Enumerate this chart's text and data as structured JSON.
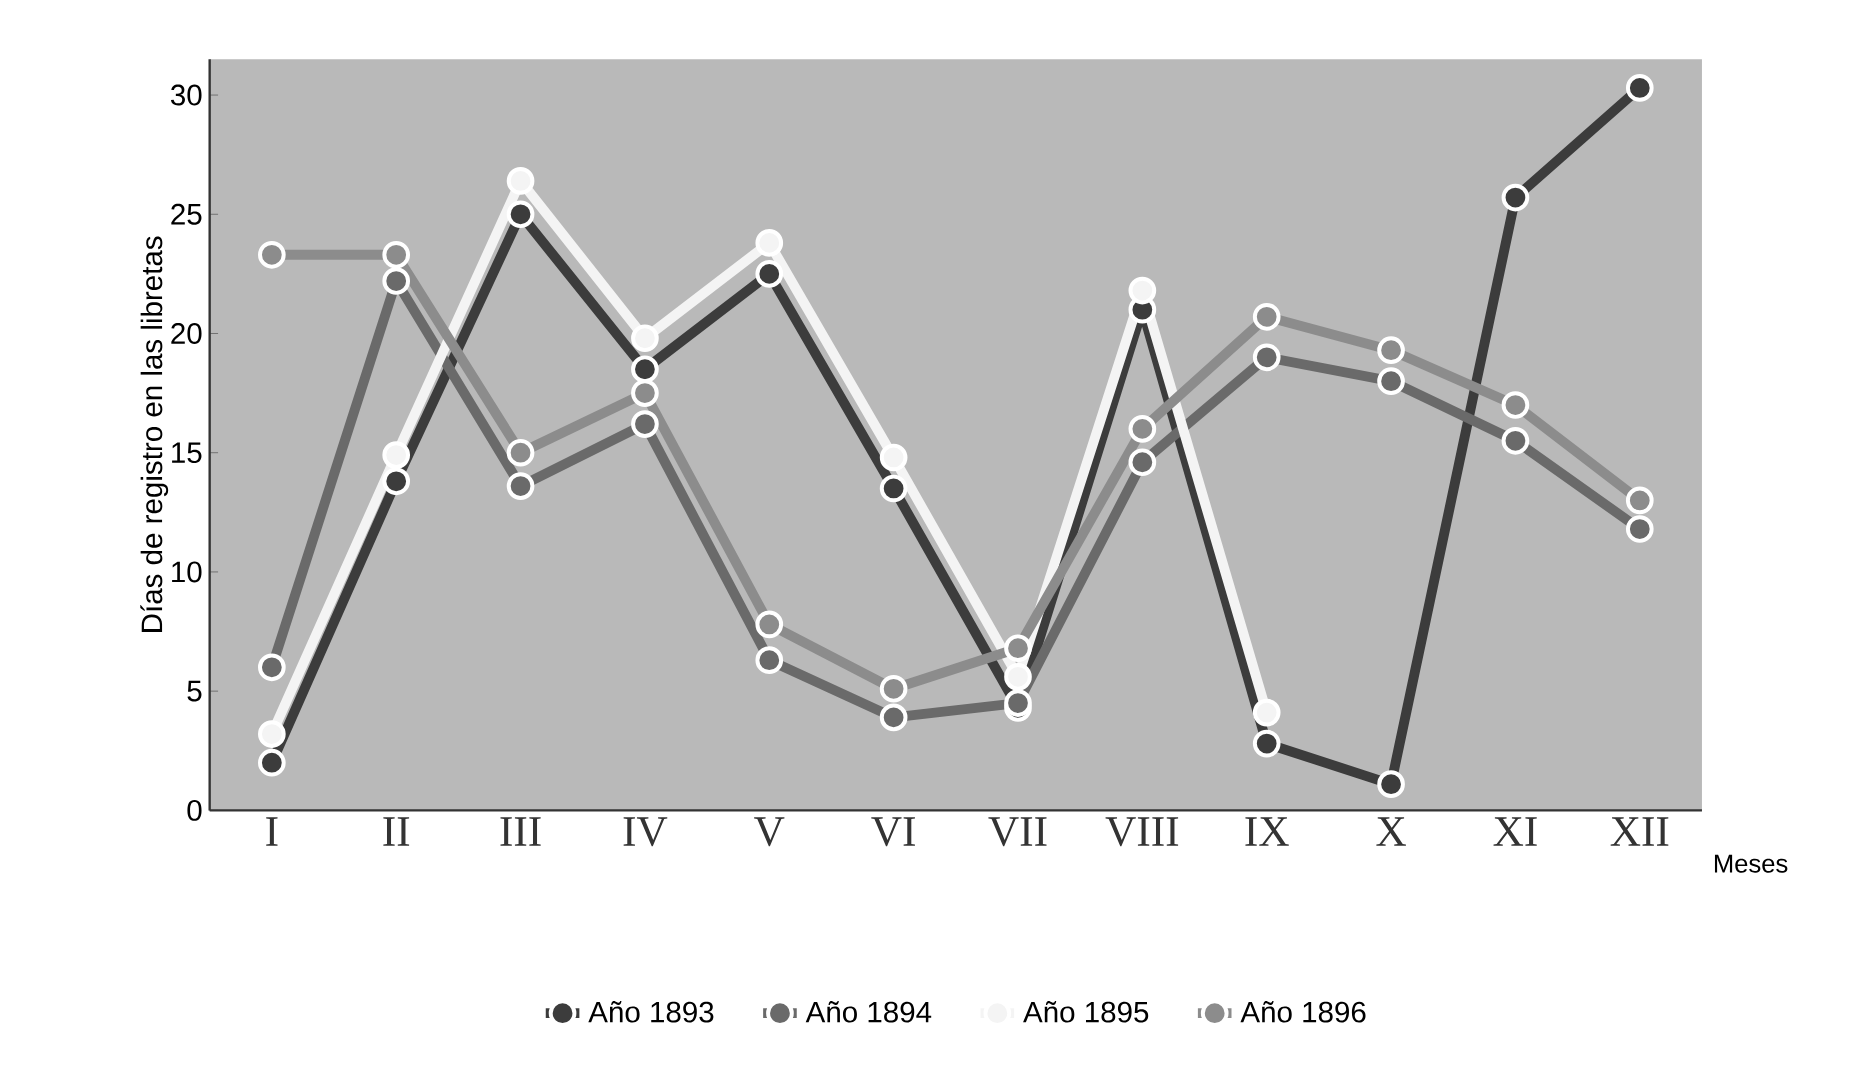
{
  "chart_data": {
    "type": "line",
    "ylabel": "Días de registro en las libretas",
    "xlabel": "Meses",
    "categories": [
      "I",
      "II",
      "III",
      "IV",
      "V",
      "VI",
      "VII",
      "VIII",
      "IX",
      "X",
      "XI",
      "XII"
    ],
    "series": [
      {
        "name": "Año 1893",
        "color": "#3c3c3c",
        "values": [
          2,
          13.8,
          25,
          18.5,
          22.5,
          13.5,
          4.3,
          21,
          2.8,
          1.1,
          25.7,
          30.3
        ]
      },
      {
        "name": "Año 1894",
        "color": "#6a6a6a",
        "values": [
          6,
          22.2,
          13.6,
          16.2,
          6.3,
          3.9,
          4.5,
          14.6,
          19,
          18,
          15.5,
          11.8
        ]
      },
      {
        "name": "Año 1895",
        "color": "#f4f4f4",
        "values": [
          3.2,
          14.9,
          26.4,
          19.8,
          23.8,
          14.8,
          5.6,
          21.8,
          4.1,
          null,
          null,
          null
        ]
      },
      {
        "name": "Año 1896",
        "color": "#8c8c8c",
        "values": [
          23.3,
          23.3,
          15,
          17.5,
          7.8,
          5.1,
          6.8,
          16,
          20.7,
          19.3,
          17,
          13
        ]
      }
    ],
    "ylim": [
      0,
      31.5
    ],
    "yticks": [
      0,
      5,
      10,
      15,
      20,
      25,
      30
    ],
    "grid": false,
    "legend": "bottom",
    "marker": "circle",
    "line_style": "solid"
  }
}
